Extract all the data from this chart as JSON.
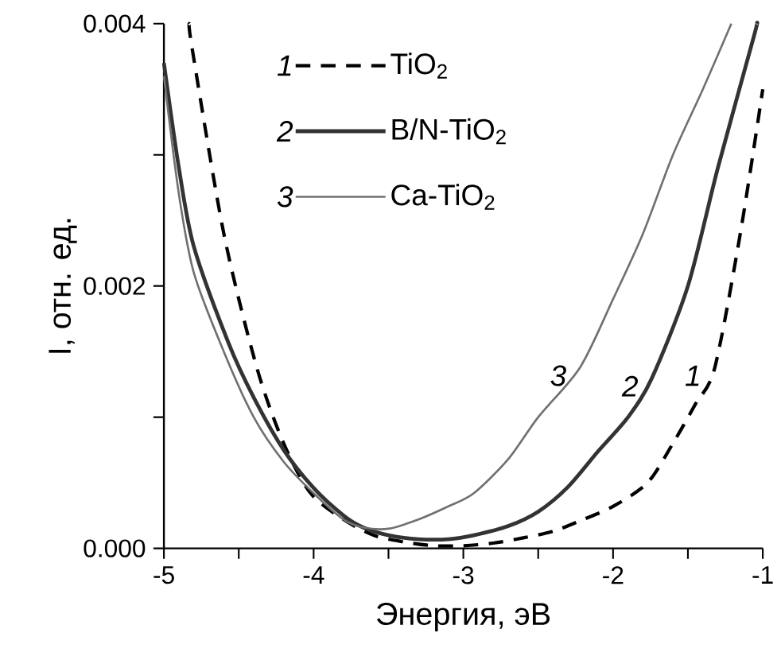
{
  "chart_data": {
    "type": "line",
    "xlabel": "Энергия, эВ",
    "ylabel": "I, отн. ед.",
    "xlim": [
      -5,
      -1
    ],
    "ylim": [
      0,
      0.004
    ],
    "xticks": [
      -5,
      {
        "value": -4.5,
        "label": null
      },
      -4,
      {
        "value": -3.5,
        "label": null
      },
      -3,
      {
        "value": -2.5,
        "label": null
      },
      -2,
      {
        "value": -1.5,
        "label": null
      },
      -1
    ],
    "yticks": [
      {
        "value": 0,
        "label": "0.000"
      },
      {
        "value": 0.001,
        "label": null
      },
      {
        "value": 0.002,
        "label": "0.002"
      },
      {
        "value": 0.003,
        "label": null
      },
      {
        "value": 0.004,
        "label": "0.004"
      }
    ],
    "grid": false,
    "legend": "top",
    "series": [
      {
        "name": "TiO$_{2}$",
        "color": "#000000",
        "line_style": "dashed",
        "x": [
          -4.83,
          -4.81,
          -4.6,
          -4.38,
          -4.2,
          -4.02,
          -3.8,
          -3.6,
          -3.4,
          -3.2,
          -3.0,
          -2.8,
          -2.6,
          -2.4,
          -2.2,
          -2.0,
          -1.77,
          -1.6,
          -1.45,
          -1.32,
          -1.15,
          -1.0
        ],
        "values": [
          0.004,
          0.0038,
          0.0024,
          0.00138,
          0.0008,
          0.00042,
          0.00022,
          0.0001,
          5e-05,
          2e-05,
          2e-05,
          4e-05,
          8e-05,
          0.00013,
          0.00022,
          0.00032,
          0.0005,
          0.0008,
          0.0011,
          0.00138,
          0.0024,
          0.0035
        ]
      },
      {
        "name": "B/N-TiO$_{2}$",
        "color": "#333333",
        "line_style": "solid",
        "x": [
          -5,
          -4.9,
          -4.8,
          -4.57,
          -4.4,
          -4.2,
          -4.0,
          -3.8,
          -3.67,
          -3.5,
          -3.3,
          -3.1,
          -2.93,
          -2.7,
          -2.5,
          -2.3,
          -2.1,
          -1.9,
          -1.74,
          -1.5,
          -1.3,
          -1.06,
          -1.04
        ],
        "values": [
          0.0037,
          0.0029,
          0.0023,
          0.00157,
          0.00115,
          0.00075,
          0.00046,
          0.00025,
          0.00016,
          0.0001,
          7e-05,
          7e-05,
          0.0001,
          0.00017,
          0.00028,
          0.00047,
          0.00074,
          0.001,
          0.0013,
          0.002,
          0.0029,
          0.0039,
          0.004
        ]
      },
      {
        "name": "Ca-TiO$_{2}$",
        "color": "#707070",
        "line_style": "solid",
        "x": [
          -5,
          -4.9,
          -4.8,
          -4.6,
          -4.4,
          -4.2,
          -4.0,
          -3.8,
          -3.67,
          -3.5,
          -3.3,
          -3.1,
          -2.93,
          -2.7,
          -2.5,
          -2.22,
          -2.0,
          -1.8,
          -1.6,
          -1.4,
          -1.21
        ],
        "values": [
          0.0036,
          0.0027,
          0.0021,
          0.0015,
          0.001,
          0.00066,
          0.00042,
          0.00022,
          0.00016,
          0.00015,
          0.00022,
          0.00032,
          0.00042,
          0.00068,
          0.001,
          0.00138,
          0.0019,
          0.0024,
          0.003,
          0.0035,
          0.004
        ]
      }
    ],
    "annotations": [
      "1",
      "2",
      "3",
      {
        "text": "3",
        "x": -2.22,
        "y": 0.00138
      },
      {
        "text": "2",
        "x": -1.74,
        "y": 0.0013
      },
      {
        "text": "1",
        "x": -1.32,
        "y": 0.00138
      }
    ]
  }
}
